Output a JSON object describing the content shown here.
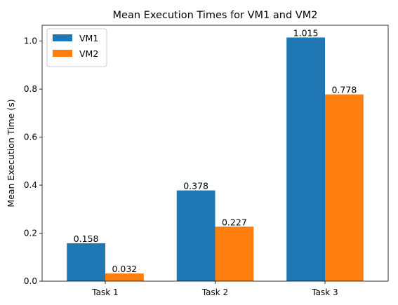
{
  "chart_data": {
    "type": "bar",
    "title": "Mean Execution Times for VM1 and VM2",
    "xlabel": "",
    "ylabel": "Mean Execution Time (s)",
    "categories": [
      "Task 1",
      "Task 2",
      "Task 3"
    ],
    "series": [
      {
        "name": "VM1",
        "values": [
          0.158,
          0.378,
          1.015
        ],
        "labels": [
          "0.158",
          "0.378",
          "1.015"
        ],
        "color": "#1f77b4"
      },
      {
        "name": "VM2",
        "values": [
          0.032,
          0.227,
          0.778
        ],
        "labels": [
          "0.032",
          "0.227",
          "0.778"
        ],
        "color": "#ff7f0e"
      }
    ],
    "ylim": [
      0,
      1.066
    ],
    "yticks": [
      0.0,
      0.2,
      0.4,
      0.6,
      0.8,
      1.0
    ],
    "ytick_labels": [
      "0.0",
      "0.2",
      "0.4",
      "0.6",
      "0.8",
      "1.0"
    ],
    "grid": false,
    "legend_position": "top-left"
  }
}
